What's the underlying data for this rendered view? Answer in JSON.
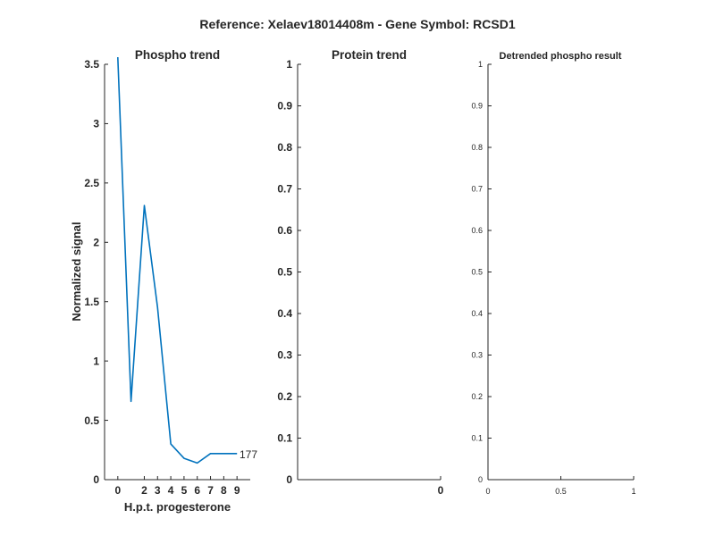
{
  "figure_title": "Reference:  Xelaev18014408m - Gene Symbol:  RCSD1",
  "colors": {
    "line": "#0072bd",
    "axis": "#262626",
    "background": "#ffffff"
  },
  "chart_data": [
    {
      "type": "line",
      "title": "Phospho trend",
      "xlabel": "H.p.t. progesterone",
      "ylabel": "Normalized signal",
      "xlim": [
        -1,
        10
      ],
      "ylim": [
        0,
        3.5
      ],
      "xticks": [
        0,
        2,
        3,
        4,
        5,
        6,
        7,
        8,
        9
      ],
      "yticks": [
        0,
        0.5,
        1,
        1.5,
        2,
        2.5,
        3,
        3.5
      ],
      "grid": false,
      "series": [
        {
          "x": [
            0,
            1,
            2,
            3,
            4,
            5,
            6,
            7,
            8,
            9
          ],
          "y": [
            3.56,
            0.66,
            2.31,
            1.45,
            0.3,
            0.18,
            0.14,
            0.22,
            0.22,
            0.22
          ]
        }
      ],
      "end_label": "177"
    },
    {
      "type": "line",
      "title": "Protein trend",
      "xlabel": "",
      "ylabel": "",
      "xlim": [
        -1,
        0
      ],
      "ylim": [
        0,
        1
      ],
      "xticks": [
        0
      ],
      "yticks": [
        0,
        0.1,
        0.2,
        0.3,
        0.4,
        0.5,
        0.6,
        0.7,
        0.8,
        0.9,
        1
      ],
      "grid": false,
      "series": []
    },
    {
      "type": "line",
      "title": "Detrended phospho result",
      "xlabel": "",
      "ylabel": "",
      "xlim": [
        0,
        1
      ],
      "ylim": [
        0,
        1
      ],
      "xticks": [
        0,
        0.5,
        1
      ],
      "yticks": [
        0,
        0.1,
        0.2,
        0.3,
        0.4,
        0.5,
        0.6,
        0.7,
        0.8,
        0.9,
        1
      ],
      "grid": false,
      "series": []
    }
  ]
}
